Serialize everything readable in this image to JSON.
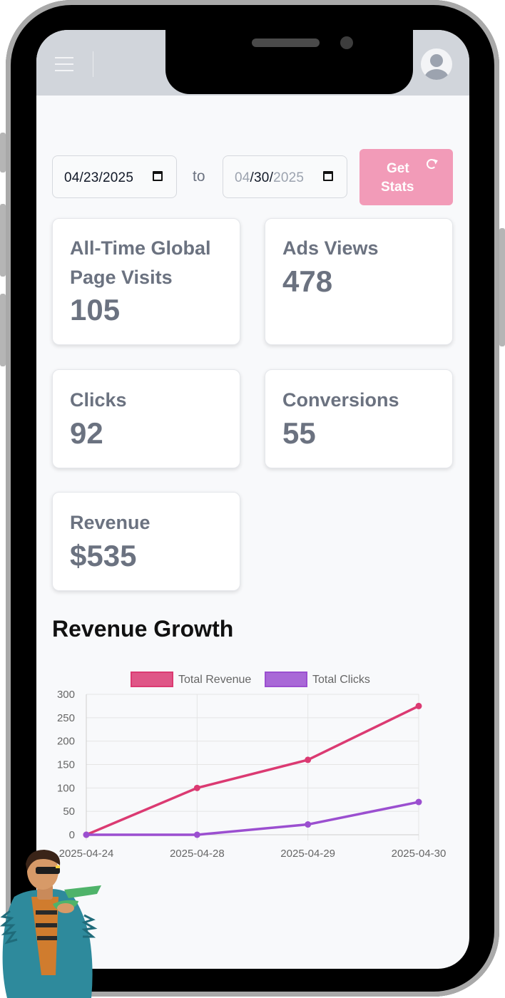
{
  "date_range": {
    "start": "04/23/2025",
    "end_month": "04",
    "end_day": "30",
    "end_year": "2025",
    "separator": "to"
  },
  "get_stats_button": {
    "line1": "Get",
    "line2": "Stats"
  },
  "stats": [
    {
      "label_line1": "All-Time Global",
      "label_line2": "Page Visits",
      "value": "105"
    },
    {
      "label": "Ads Views",
      "value": "478"
    },
    {
      "label": "Clicks",
      "value": "92"
    },
    {
      "label": "Conversions",
      "value": "55"
    },
    {
      "label": "Revenue",
      "value": "$535"
    }
  ],
  "section_title": "Revenue Growth",
  "colors": {
    "revenue": "#db3a72",
    "clicks": "#9b4fd0",
    "button": "#f29bb8",
    "topbar": "#d1d5db"
  },
  "chart_data": {
    "type": "line",
    "x": [
      "2025-04-24",
      "2025-04-28",
      "2025-04-29",
      "2025-04-30"
    ],
    "series": [
      {
        "name": "Total Revenue",
        "values": [
          0,
          100,
          160,
          275
        ],
        "color": "#db3a72"
      },
      {
        "name": "Total Clicks",
        "values": [
          0,
          0,
          22,
          70
        ],
        "color": "#9b4fd0"
      }
    ],
    "yticks": [
      "300",
      "250",
      "200",
      "150",
      "100",
      "50",
      "0"
    ],
    "ylim": [
      0,
      300
    ],
    "grid": true,
    "legend": "top"
  }
}
